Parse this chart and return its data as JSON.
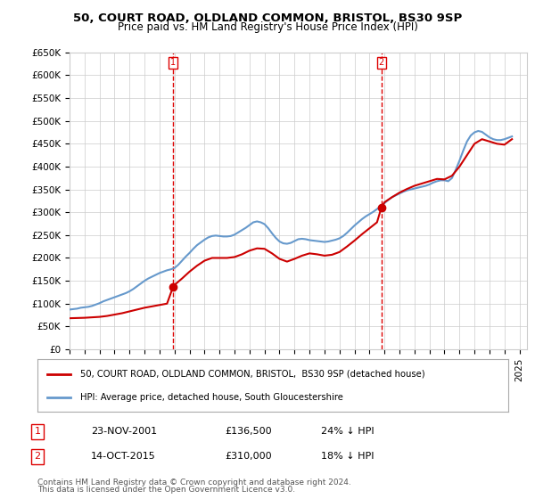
{
  "title": "50, COURT ROAD, OLDLAND COMMON, BRISTOL, BS30 9SP",
  "subtitle": "Price paid vs. HM Land Registry's House Price Index (HPI)",
  "ylabel_ticks": [
    "£0",
    "£50K",
    "£100K",
    "£150K",
    "£200K",
    "£250K",
    "£300K",
    "£350K",
    "£400K",
    "£450K",
    "£500K",
    "£550K",
    "£600K",
    "£650K"
  ],
  "ylim": [
    0,
    650000
  ],
  "ytick_vals": [
    0,
    50000,
    100000,
    150000,
    200000,
    250000,
    300000,
    350000,
    400000,
    450000,
    500000,
    550000,
    600000,
    650000
  ],
  "xlim_start": 1995.0,
  "xlim_end": 2025.5,
  "sale1_x": 2001.9,
  "sale1_y": 136500,
  "sale2_x": 2015.79,
  "sale2_y": 310000,
  "sale1_label": "1",
  "sale2_label": "2",
  "legend_line1": "50, COURT ROAD, OLDLAND COMMON, BRISTOL,  BS30 9SP (detached house)",
  "legend_line2": "HPI: Average price, detached house, South Gloucestershire",
  "table_row1": [
    "1",
    "23-NOV-2001",
    "£136,500",
    "24% ↓ HPI"
  ],
  "table_row2": [
    "2",
    "14-OCT-2015",
    "£310,000",
    "18% ↓ HPI"
  ],
  "footer1": "Contains HM Land Registry data © Crown copyright and database right 2024.",
  "footer2": "This data is licensed under the Open Government Licence v3.0.",
  "price_color": "#cc0000",
  "hpi_color": "#6699cc",
  "vline_color": "#dd0000",
  "background_color": "#ffffff",
  "grid_color": "#cccccc",
  "hpi_data_x": [
    1995.0,
    1995.25,
    1995.5,
    1995.75,
    1996.0,
    1996.25,
    1996.5,
    1996.75,
    1997.0,
    1997.25,
    1997.5,
    1997.75,
    1998.0,
    1998.25,
    1998.5,
    1998.75,
    1999.0,
    1999.25,
    1999.5,
    1999.75,
    2000.0,
    2000.25,
    2000.5,
    2000.75,
    2001.0,
    2001.25,
    2001.5,
    2001.75,
    2002.0,
    2002.25,
    2002.5,
    2002.75,
    2003.0,
    2003.25,
    2003.5,
    2003.75,
    2004.0,
    2004.25,
    2004.5,
    2004.75,
    2005.0,
    2005.25,
    2005.5,
    2005.75,
    2006.0,
    2006.25,
    2006.5,
    2006.75,
    2007.0,
    2007.25,
    2007.5,
    2007.75,
    2008.0,
    2008.25,
    2008.5,
    2008.75,
    2009.0,
    2009.25,
    2009.5,
    2009.75,
    2010.0,
    2010.25,
    2010.5,
    2010.75,
    2011.0,
    2011.25,
    2011.5,
    2011.75,
    2012.0,
    2012.25,
    2012.5,
    2012.75,
    2013.0,
    2013.25,
    2013.5,
    2013.75,
    2014.0,
    2014.25,
    2014.5,
    2014.75,
    2015.0,
    2015.25,
    2015.5,
    2015.75,
    2016.0,
    2016.25,
    2016.5,
    2016.75,
    2017.0,
    2017.25,
    2017.5,
    2017.75,
    2018.0,
    2018.25,
    2018.5,
    2018.75,
    2019.0,
    2019.25,
    2019.5,
    2019.75,
    2020.0,
    2020.25,
    2020.5,
    2020.75,
    2021.0,
    2021.25,
    2021.5,
    2021.75,
    2022.0,
    2022.25,
    2022.5,
    2022.75,
    2023.0,
    2023.25,
    2023.5,
    2023.75,
    2024.0,
    2024.25,
    2024.5
  ],
  "hpi_data_y": [
    87000,
    88000,
    89000,
    91000,
    92000,
    93000,
    95000,
    98000,
    101000,
    105000,
    108000,
    111000,
    114000,
    117000,
    120000,
    123000,
    127000,
    132000,
    138000,
    144000,
    150000,
    155000,
    159000,
    163000,
    167000,
    170000,
    173000,
    175000,
    178000,
    185000,
    194000,
    203000,
    211000,
    220000,
    228000,
    234000,
    240000,
    245000,
    248000,
    249000,
    248000,
    247000,
    247000,
    248000,
    251000,
    256000,
    261000,
    266000,
    272000,
    278000,
    280000,
    278000,
    274000,
    265000,
    254000,
    244000,
    236000,
    232000,
    231000,
    233000,
    237000,
    241000,
    242000,
    241000,
    239000,
    238000,
    237000,
    236000,
    235000,
    236000,
    238000,
    240000,
    243000,
    248000,
    255000,
    263000,
    271000,
    278000,
    285000,
    291000,
    296000,
    301000,
    307000,
    313000,
    320000,
    327000,
    333000,
    337000,
    341000,
    345000,
    348000,
    350000,
    352000,
    354000,
    356000,
    358000,
    361000,
    365000,
    368000,
    370000,
    370000,
    368000,
    375000,
    393000,
    413000,
    435000,
    455000,
    468000,
    475000,
    478000,
    476000,
    470000,
    464000,
    460000,
    458000,
    458000,
    460000,
    463000,
    466000
  ],
  "price_data_x": [
    1995.0,
    1995.5,
    1996.0,
    1996.5,
    1997.0,
    1997.5,
    1998.0,
    1998.5,
    1999.0,
    1999.5,
    2000.0,
    2000.5,
    2001.0,
    2001.5,
    2001.9,
    2002.0,
    2002.5,
    2003.0,
    2003.5,
    2004.0,
    2004.5,
    2005.0,
    2005.5,
    2006.0,
    2006.5,
    2007.0,
    2007.5,
    2008.0,
    2008.5,
    2009.0,
    2009.5,
    2010.0,
    2010.5,
    2011.0,
    2011.5,
    2012.0,
    2012.5,
    2013.0,
    2013.5,
    2014.0,
    2014.5,
    2015.0,
    2015.5,
    2015.79,
    2016.0,
    2016.5,
    2017.0,
    2017.5,
    2018.0,
    2018.5,
    2019.0,
    2019.5,
    2020.0,
    2020.5,
    2021.0,
    2021.5,
    2022.0,
    2022.5,
    2023.0,
    2023.5,
    2024.0,
    2024.5
  ],
  "price_data_y": [
    68000,
    68500,
    69000,
    70000,
    71000,
    73000,
    76000,
    79000,
    83000,
    87000,
    91000,
    94000,
    97000,
    100000,
    136500,
    141000,
    155000,
    170000,
    183000,
    194000,
    200000,
    200000,
    200000,
    202000,
    208000,
    216000,
    221000,
    220000,
    210000,
    198000,
    192000,
    198000,
    205000,
    210000,
    208000,
    205000,
    207000,
    213000,
    225000,
    238000,
    252000,
    265000,
    278000,
    310000,
    322000,
    333000,
    343000,
    351000,
    358000,
    363000,
    368000,
    373000,
    372000,
    380000,
    400000,
    425000,
    450000,
    460000,
    455000,
    450000,
    448000,
    460000
  ]
}
